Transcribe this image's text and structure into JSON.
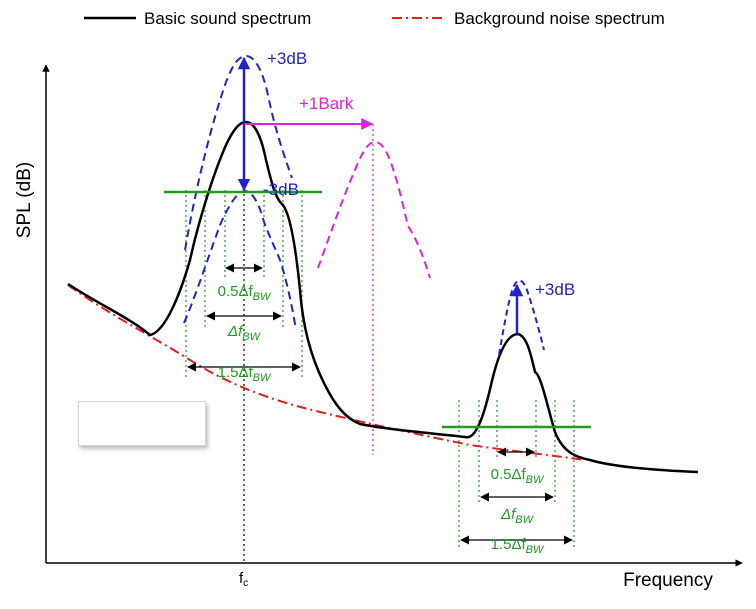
{
  "legend": {
    "basic": "Basic sound spectrum",
    "noise": "Background noise spectrum"
  },
  "axes": {
    "y_label": "SPL (dB)",
    "x_label": "Frequency",
    "fc_label": "f",
    "fc_sub": "c"
  },
  "annotations": {
    "plus3db_main": "+3dB",
    "minus3db": "-3dB",
    "plus1bark": "+1Bark",
    "plus3db_small": "+3dB"
  },
  "bandwidths": {
    "half": "0.5Δf",
    "full": "Δf",
    "one_half": "1.5Δf",
    "sub": "BW"
  },
  "colors": {
    "basic": "#000000",
    "noise": "#e02020",
    "shifted_blue": "#2222cc",
    "bark": "#e020e0",
    "bw_green": "#1f9b1f"
  }
}
